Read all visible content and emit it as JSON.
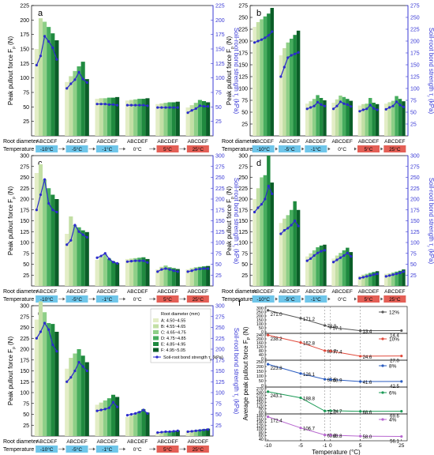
{
  "colors": {
    "bars": [
      "#e3edc6",
      "#c3dfa5",
      "#8ecf87",
      "#47ad5e",
      "#1f8a3f",
      "#0b5e28"
    ],
    "line": "#2b2bcc",
    "right_axis": "#3a3ad6",
    "cold_box": "#6fc6ea",
    "warm_box": "#e45f56",
    "f_series": [
      "#555555",
      "#e04a3c",
      "#2a5cc0",
      "#1b9a56",
      "#b766cf"
    ]
  },
  "shared": {
    "groups": [
      "-10°C",
      "-5°C",
      "-1°C",
      "0°C",
      "5°C",
      "25°C"
    ],
    "group_styles": [
      "cold",
      "cold",
      "cold",
      "plain",
      "warm",
      "warm"
    ],
    "abcdef": "ABCDEF",
    "root_diameter_label": "Root diameter",
    "temperature_label": "Temperature",
    "ylabel_left": "Peak pullout force F",
    "ylabel_left_sub": "p",
    "ylabel_left_unit": " (N)",
    "ylabel_right": "Soil-root bond strength τ",
    "ylabel_right_sub": "r",
    "ylabel_right_unit": " (kPa)"
  },
  "legend_e": {
    "title": "Root diameter (mm)",
    "items": [
      "A: 4.50~4.55",
      "B: 4.55~4.65",
      "C: 4.65~4.75",
      "D: 4.75~4.85",
      "E: 4.85~4.95",
      "F: 4.95~5.05"
    ],
    "line_label": "Soil-root bond strength τ",
    "line_label_sub": "r",
    "line_label_unit": " (kPa)"
  },
  "chart_data": [
    {
      "panel": "a",
      "type": "bar",
      "ylim": [
        0,
        225
      ],
      "yticks": [
        25,
        50,
        75,
        100,
        125,
        150,
        175,
        200,
        225
      ],
      "y2lim": [
        0,
        225
      ],
      "y2ticks": [
        25,
        50,
        75,
        100,
        125,
        150,
        175,
        200,
        225
      ],
      "bars": [
        [
          150,
          203,
          197,
          188,
          177,
          165
        ],
        [
          93,
          103,
          112,
          120,
          128,
          98
        ],
        [
          64,
          65,
          65,
          66,
          66,
          67
        ],
        [
          61,
          62,
          63,
          64,
          64,
          65
        ],
        [
          55,
          56,
          57,
          58,
          58,
          59
        ],
        [
          49,
          53,
          57,
          62,
          60,
          58
        ]
      ],
      "line": [
        [
          122,
          138,
          172,
          163,
          152,
          132
        ],
        [
          82,
          90,
          97,
          110,
          98,
          92
        ],
        [
          55,
          55,
          55,
          54,
          54,
          53
        ],
        [
          53,
          53,
          53,
          53,
          53,
          52
        ],
        [
          49,
          49,
          49,
          49,
          49,
          49
        ],
        [
          40,
          44,
          47,
          52,
          51,
          51
        ]
      ]
    },
    {
      "panel": "b",
      "type": "bar",
      "ylim": [
        0,
        275
      ],
      "yticks": [
        25,
        50,
        75,
        100,
        125,
        150,
        175,
        200,
        225,
        250,
        275
      ],
      "y2lim": [
        0,
        275
      ],
      "y2ticks": [
        25,
        50,
        75,
        100,
        125,
        150,
        175,
        200,
        225,
        250,
        275
      ],
      "bars": [
        [
          230,
          240,
          246,
          252,
          258,
          270
        ],
        [
          170,
          185,
          197,
          205,
          213,
          222
        ],
        [
          68,
          73,
          78,
          86,
          80,
          75
        ],
        [
          70,
          77,
          85,
          82,
          78,
          74
        ],
        [
          64,
          67,
          68,
          80,
          70,
          67
        ],
        [
          68,
          71,
          74,
          84,
          78,
          73
        ]
      ],
      "line": [
        [
          197,
          200,
          203,
          207,
          212,
          220
        ],
        [
          125,
          145,
          165,
          170,
          173,
          176
        ],
        [
          57,
          60,
          63,
          71,
          66,
          63
        ],
        [
          57,
          63,
          72,
          68,
          66,
          62
        ],
        [
          52,
          55,
          57,
          65,
          58,
          55
        ],
        [
          56,
          60,
          63,
          72,
          65,
          61
        ]
      ]
    },
    {
      "panel": "c",
      "type": "bar",
      "ylim": [
        0,
        300
      ],
      "yticks": [
        25,
        50,
        75,
        100,
        125,
        150,
        175,
        200,
        225,
        250,
        275,
        300
      ],
      "y2lim": [
        0,
        300
      ],
      "y2ticks": [
        25,
        50,
        75,
        100,
        125,
        150,
        175,
        200,
        225,
        250,
        275,
        300
      ],
      "bars": [
        [
          260,
          280,
          245,
          225,
          210,
          200
        ],
        [
          120,
          160,
          140,
          135,
          128,
          124
        ],
        [
          60,
          67,
          73,
          63,
          57,
          53
        ],
        [
          62,
          63,
          64,
          65,
          66,
          62
        ],
        [
          38,
          44,
          47,
          43,
          41,
          39
        ],
        [
          38,
          41,
          43,
          44,
          45,
          46
        ]
      ],
      "line": [
        [
          175,
          210,
          245,
          190,
          175,
          170
        ],
        [
          95,
          105,
          140,
          125,
          118,
          112
        ],
        [
          65,
          69,
          75,
          62,
          55,
          52
        ],
        [
          56,
          57,
          58,
          58,
          58,
          54
        ],
        [
          33,
          38,
          40,
          38,
          35,
          33
        ],
        [
          33,
          35,
          38,
          39,
          40,
          40
        ]
      ]
    },
    {
      "panel": "d",
      "type": "bar",
      "ylim": [
        0,
        300
      ],
      "yticks": [
        25,
        50,
        75,
        100,
        125,
        150,
        175,
        200,
        225,
        250,
        275,
        300
      ],
      "y2lim": [
        0,
        300
      ],
      "y2ticks": [
        25,
        50,
        75,
        100,
        125,
        150,
        175,
        200,
        225,
        250,
        275,
        300
      ],
      "bars": [
        [
          200,
          225,
          250,
          255,
          300,
          238
        ],
        [
          145,
          155,
          163,
          175,
          195,
          175
        ],
        [
          68,
          75,
          82,
          89,
          93,
          95
        ],
        [
          63,
          70,
          76,
          82,
          88,
          78
        ],
        [
          23,
          26,
          28,
          30,
          32,
          34
        ],
        [
          28,
          29,
          31,
          33,
          35,
          38
        ]
      ],
      "line": [
        [
          170,
          180,
          188,
          200,
          230,
          212
        ],
        [
          120,
          128,
          133,
          140,
          150,
          138
        ],
        [
          58,
          63,
          70,
          76,
          80,
          82
        ],
        [
          55,
          60,
          65,
          70,
          76,
          68
        ],
        [
          18,
          20,
          22,
          24,
          26,
          28
        ],
        [
          22,
          24,
          26,
          28,
          30,
          33
        ]
      ]
    },
    {
      "panel": "e",
      "type": "bar",
      "ylim": [
        0,
        300
      ],
      "yticks": [
        25,
        50,
        75,
        100,
        125,
        150,
        175,
        200,
        225,
        250,
        275,
        300
      ],
      "y2lim": [
        0,
        300
      ],
      "y2ticks": [
        25,
        50,
        75,
        100,
        125,
        150,
        175,
        200,
        225,
        250,
        275,
        300
      ],
      "bars": [
        [
          268,
          310,
          285,
          260,
          258,
          240
        ],
        [
          155,
          180,
          190,
          200,
          185,
          170
        ],
        [
          72,
          77,
          82,
          87,
          95,
          90
        ],
        [
          44,
          47,
          52,
          57,
          62,
          54
        ],
        [
          8,
          9,
          10,
          11,
          12,
          13
        ],
        [
          12,
          13,
          14,
          15,
          16,
          17
        ]
      ],
      "line": [
        [
          225,
          240,
          260,
          245,
          210,
          195
        ],
        [
          125,
          135,
          150,
          170,
          160,
          150
        ],
        [
          58,
          60,
          62,
          65,
          78,
          67
        ],
        [
          48,
          50,
          52,
          55,
          60,
          52
        ],
        [
          8,
          9,
          10,
          10,
          11,
          12
        ],
        [
          10,
          11,
          12,
          13,
          14,
          15
        ]
      ]
    },
    {
      "panel": "f",
      "type": "line",
      "xlabel": "Temperature (°C)",
      "ylabel": "Average peak pullout force F",
      "ylabel_sub": "P",
      "ylabel_unit": " (N)",
      "x": [
        -10,
        -5,
        -1,
        0,
        5,
        25
      ],
      "xticks": [
        -10,
        -5,
        -1,
        0,
        5,
        25
      ],
      "xtick_labels": [
        "-10",
        "-5",
        "-1",
        "0",
        "5",
        "25"
      ],
      "subpanels": [
        {
          "name": "12%",
          "values": [
            271.0,
            171.2,
            79.9,
            57.1,
            13.4,
            14.4
          ],
          "labels": [
            "271.0",
            "171.2",
            "79.9",
            "57.1",
            "13.4",
            "14.4"
          ],
          "ylim": [
            0,
            300
          ],
          "yticks": [
            0,
            50,
            100,
            150,
            200,
            250,
            300
          ]
        },
        {
          "name": "10%",
          "values": [
            238.2,
            162.8,
            80.7,
            77.4,
            24.6,
            27.0
          ],
          "labels": [
            "238.2",
            "162.8",
            "80.7",
            "77.4",
            "24.6",
            "27.0"
          ],
          "ylim": [
            0,
            240
          ],
          "yticks": [
            0,
            40,
            80,
            120,
            160,
            200,
            240
          ]
        },
        {
          "name": "8%",
          "values": [
            223.8,
            126.1,
            65.5,
            63.9,
            41.6,
            42.5
          ],
          "labels": [
            "223.8",
            "126.1",
            "65.5",
            "63.9",
            "41.6",
            "42.5"
          ],
          "ylim": [
            0,
            250
          ],
          "yticks": [
            0,
            50,
            100,
            150,
            200,
            250
          ]
        },
        {
          "name": "6%",
          "values": [
            243.1,
            188.8,
            72.0,
            74.7,
            68.6,
            69.6
          ],
          "labels": [
            "243.1",
            "188.8",
            "72.0",
            "74.7",
            "68.6",
            "69.6"
          ],
          "ylim": [
            60,
            270
          ],
          "yticks": [
            60,
            90,
            120,
            150,
            180,
            210,
            240,
            270
          ]
        },
        {
          "name": "4%",
          "values": [
            172.4,
            106.7,
            65.3,
            63.8,
            58.0,
            56.1
          ],
          "labels": [
            "172.4",
            "106.7",
            "65.3",
            "63.8",
            "58.0",
            "56.1"
          ],
          "ylim": [
            40,
            180
          ],
          "yticks": [
            40,
            60,
            80,
            100,
            120,
            140,
            160,
            180
          ]
        }
      ]
    }
  ]
}
